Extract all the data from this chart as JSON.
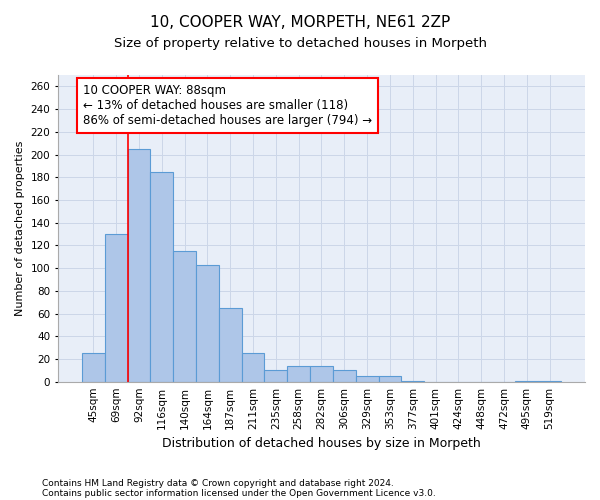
{
  "title1": "10, COOPER WAY, MORPETH, NE61 2ZP",
  "title2": "Size of property relative to detached houses in Morpeth",
  "xlabel": "Distribution of detached houses by size in Morpeth",
  "ylabel": "Number of detached properties",
  "categories": [
    "45sqm",
    "69sqm",
    "92sqm",
    "116sqm",
    "140sqm",
    "164sqm",
    "187sqm",
    "211sqm",
    "235sqm",
    "258sqm",
    "282sqm",
    "306sqm",
    "329sqm",
    "353sqm",
    "377sqm",
    "401sqm",
    "424sqm",
    "448sqm",
    "472sqm",
    "495sqm",
    "519sqm"
  ],
  "values": [
    25,
    130,
    205,
    185,
    115,
    103,
    65,
    25,
    10,
    14,
    14,
    10,
    5,
    5,
    1,
    0,
    0,
    0,
    0,
    1,
    1
  ],
  "bar_color": "#aec6e8",
  "bar_edge_color": "#5b9bd5",
  "bar_linewidth": 0.8,
  "annotation_text": "10 COOPER WAY: 88sqm\n← 13% of detached houses are smaller (118)\n86% of semi-detached houses are larger (794) →",
  "annotation_box_color": "white",
  "annotation_box_edge": "red",
  "annotation_fontsize": 8.5,
  "grid_color": "#ccd6e8",
  "background_color": "#e8eef8",
  "ylim": [
    0,
    270
  ],
  "yticks": [
    0,
    20,
    40,
    60,
    80,
    100,
    120,
    140,
    160,
    180,
    200,
    220,
    240,
    260
  ],
  "footer1": "Contains HM Land Registry data © Crown copyright and database right 2024.",
  "footer2": "Contains public sector information licensed under the Open Government Licence v3.0.",
  "title1_fontsize": 11,
  "title2_fontsize": 9.5,
  "xlabel_fontsize": 9,
  "ylabel_fontsize": 8,
  "tick_fontsize": 7.5,
  "footer_fontsize": 6.5
}
